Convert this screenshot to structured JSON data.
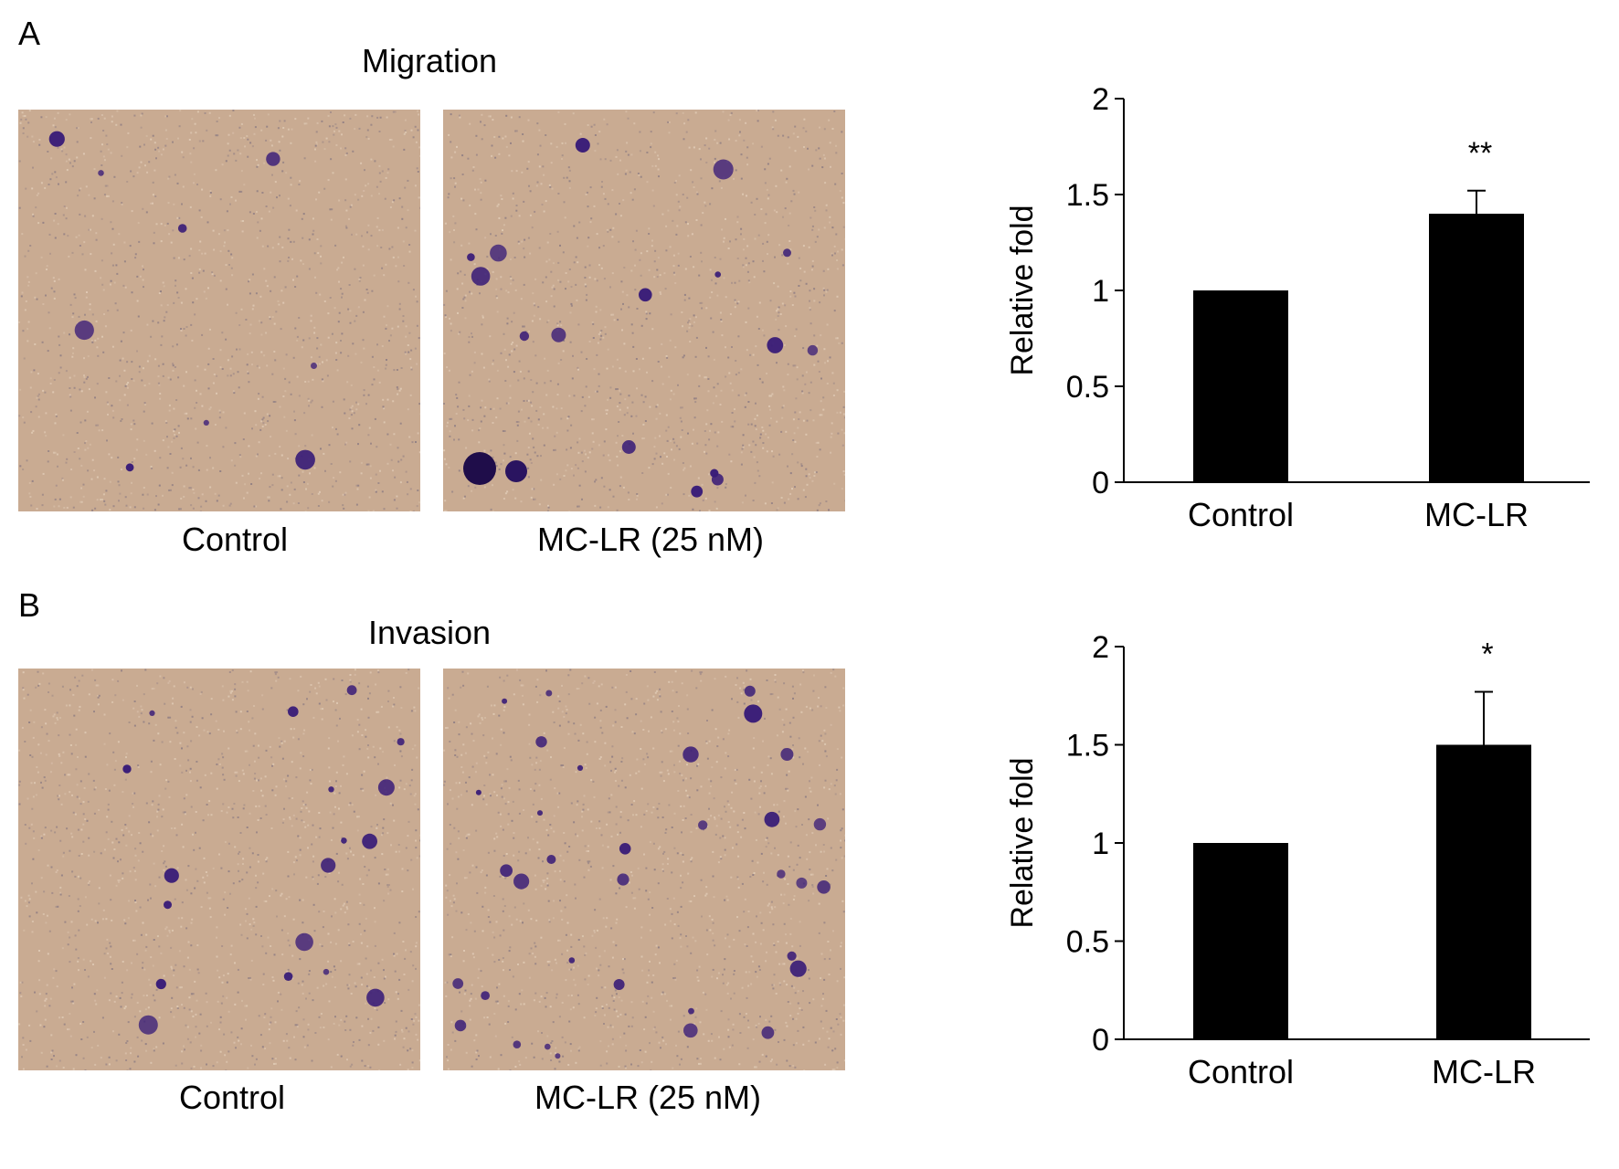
{
  "panels": [
    {
      "letter": "A",
      "title": "Migration",
      "captions": [
        "Control",
        "MC-LR (25 nM)"
      ]
    },
    {
      "letter": "B",
      "title": "Invasion",
      "captions": [
        "Control",
        "MC-LR (25 nM)"
      ]
    }
  ],
  "colors": {
    "bar": "#000000",
    "membrane": "#c9ab92",
    "cell_stain": "#3a1d78"
  },
  "chart_data": [
    {
      "type": "bar",
      "categories": [
        "Control",
        "MC-LR"
      ],
      "values": [
        1.0,
        1.4
      ],
      "errors": [
        0,
        0.12
      ],
      "annotations": [
        "",
        "**"
      ],
      "ylabel": "Relative fold",
      "ylim": [
        0,
        2
      ],
      "yticks": [
        "0",
        "0.5",
        "1",
        "1.5",
        "2"
      ],
      "grid": false
    },
    {
      "type": "bar",
      "categories": [
        "Control",
        "MC-LR"
      ],
      "values": [
        1.0,
        1.5
      ],
      "errors": [
        0,
        0.27
      ],
      "annotations": [
        "",
        "*"
      ],
      "ylabel": "Relative fold",
      "ylim": [
        0,
        2
      ],
      "yticks": [
        "0",
        "0.5",
        "1",
        "1.5",
        "2"
      ],
      "grid": false
    }
  ]
}
